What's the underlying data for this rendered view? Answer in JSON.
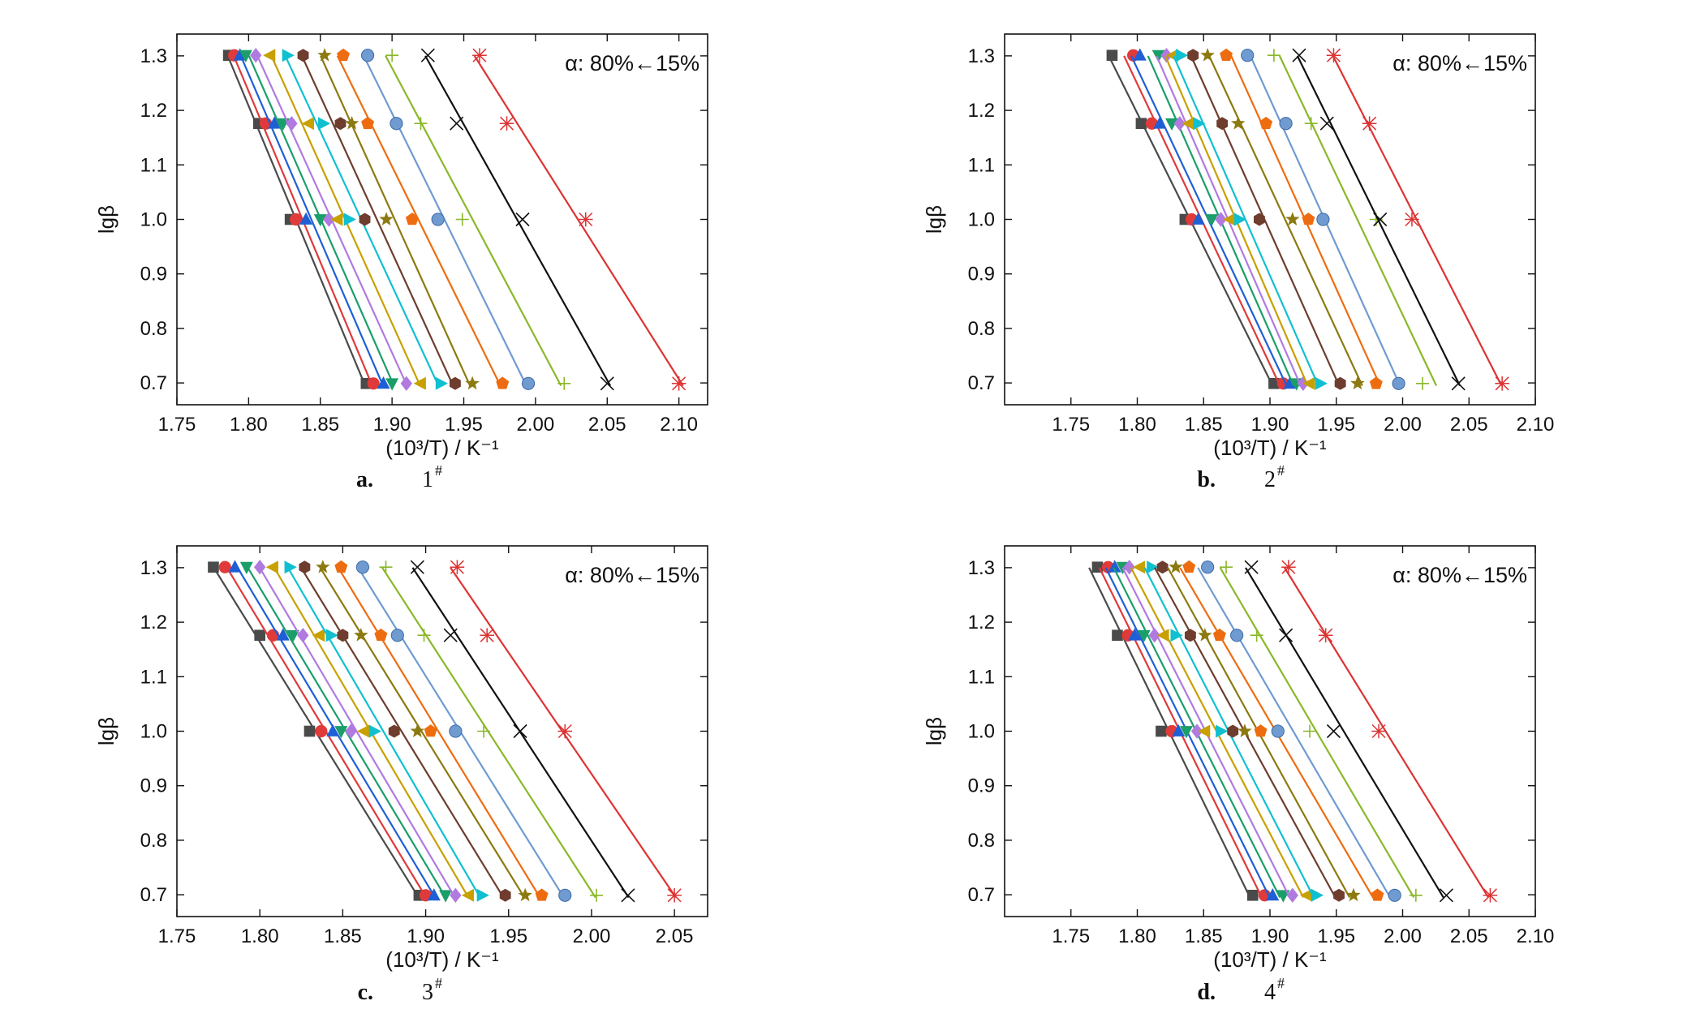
{
  "figure": {
    "panels": [
      {
        "label": "a.",
        "sample": "1",
        "sample_mark": "#"
      },
      {
        "label": "b.",
        "sample": "2",
        "sample_mark": "#"
      },
      {
        "label": "c.",
        "sample": "3",
        "sample_mark": "#"
      },
      {
        "label": "d.",
        "sample": "4",
        "sample_mark": "#"
      }
    ]
  },
  "chart_data": [
    {
      "type": "scatter",
      "panel": "a",
      "ylabel": "lgβ",
      "xlabel": "(10³/T) / K⁻¹",
      "annotation": "α: 80%←15%",
      "xlim": [
        1.75,
        2.12
      ],
      "ylim": [
        0.66,
        1.34
      ],
      "xticks": [
        "1.75",
        "1.80",
        "1.85",
        "1.90",
        "1.95",
        "2.00",
        "2.05",
        "2.10"
      ],
      "yticks": [
        "0.7",
        "0.8",
        "0.9",
        "1.0",
        "1.1",
        "1.2",
        "1.3"
      ],
      "y": [
        1.301,
        1.176,
        1.0,
        0.699
      ],
      "series": [
        {
          "marker": "square",
          "color": "#4a4a4a",
          "x": [
            1.786,
            1.807,
            1.829,
            1.882
          ]
        },
        {
          "marker": "circle",
          "color": "#e03a3a",
          "x": [
            1.79,
            1.812,
            1.833,
            1.887
          ]
        },
        {
          "marker": "triangle-up",
          "color": "#1f5fd6",
          "x": [
            1.794,
            1.818,
            1.84,
            1.894
          ]
        },
        {
          "marker": "triangle-down",
          "color": "#1a9e6a",
          "x": [
            1.798,
            1.824,
            1.85,
            1.9
          ]
        },
        {
          "marker": "diamond",
          "color": "#b07ae0",
          "x": [
            1.805,
            1.83,
            1.856,
            1.91
          ]
        },
        {
          "marker": "triangle-left",
          "color": "#c8a000",
          "x": [
            1.815,
            1.842,
            1.862,
            1.92
          ]
        },
        {
          "marker": "triangle-right",
          "color": "#10c0d0",
          "x": [
            1.827,
            1.852,
            1.87,
            1.934
          ]
        },
        {
          "marker": "hexagon",
          "color": "#6e3d2e",
          "x": [
            1.838,
            1.864,
            1.881,
            1.944
          ]
        },
        {
          "marker": "star",
          "color": "#8c7a10",
          "x": [
            1.853,
            1.872,
            1.896,
            1.956
          ]
        },
        {
          "marker": "pentagon",
          "color": "#ee6c10",
          "x": [
            1.866,
            1.883,
            1.914,
            1.977
          ]
        },
        {
          "marker": "sphere",
          "color": "#6f9bd1",
          "x": [
            1.883,
            1.903,
            1.932,
            1.995
          ]
        },
        {
          "marker": "plus",
          "color": "#8ab82a",
          "x": [
            1.9,
            1.92,
            1.949,
            2.02
          ]
        },
        {
          "marker": "x",
          "color": "#111111",
          "x": [
            1.925,
            1.945,
            1.991,
            2.05
          ]
        },
        {
          "marker": "asterisk",
          "color": "#dd3333",
          "x": [
            1.961,
            1.98,
            2.035,
            2.1
          ]
        }
      ]
    },
    {
      "type": "scatter",
      "panel": "b",
      "ylabel": "lgβ",
      "xlabel": "(10³/T) / K⁻¹",
      "annotation": "α: 80%←15%",
      "xlim": [
        1.7,
        2.1
      ],
      "ylim": [
        0.66,
        1.34
      ],
      "xticks": [
        "1.75",
        "1.80",
        "1.85",
        "1.90",
        "1.95",
        "2.00",
        "2.05",
        "2.10"
      ],
      "yticks": [
        "0.7",
        "0.8",
        "0.9",
        "1.0",
        "1.1",
        "1.2",
        "1.3"
      ],
      "y": [
        1.301,
        1.176,
        1.0,
        0.699
      ],
      "series": [
        {
          "marker": "square",
          "color": "#4a4a4a",
          "x": [
            1.781,
            1.803,
            1.836,
            1.903
          ]
        },
        {
          "marker": "circle",
          "color": "#e03a3a",
          "x": [
            1.797,
            1.811,
            1.841,
            1.91
          ]
        },
        {
          "marker": "triangle-up",
          "color": "#1f5fd6",
          "x": [
            1.802,
            1.817,
            1.846,
            1.915
          ]
        },
        {
          "marker": "triangle-down",
          "color": "#1a9e6a",
          "x": [
            1.816,
            1.826,
            1.856,
            1.92
          ]
        },
        {
          "marker": "diamond",
          "color": "#b07ae0",
          "x": [
            1.822,
            1.832,
            1.863,
            1.925
          ]
        },
        {
          "marker": "triangle-left",
          "color": "#c8a000",
          "x": [
            1.827,
            1.839,
            1.87,
            1.93
          ]
        },
        {
          "marker": "triangle-right",
          "color": "#10c0d0",
          "x": [
            1.833,
            1.846,
            1.877,
            1.938
          ]
        },
        {
          "marker": "hexagon",
          "color": "#6e3d2e",
          "x": [
            1.842,
            1.864,
            1.892,
            1.953
          ]
        },
        {
          "marker": "star",
          "color": "#8c7a10",
          "x": [
            1.853,
            1.876,
            1.917,
            1.966
          ]
        },
        {
          "marker": "pentagon",
          "color": "#ee6c10",
          "x": [
            1.867,
            1.897,
            1.929,
            1.98
          ]
        },
        {
          "marker": "sphere",
          "color": "#6f9bd1",
          "x": [
            1.883,
            1.912,
            1.94,
            1.997
          ]
        },
        {
          "marker": "plus",
          "color": "#8ab82a",
          "x": [
            1.903,
            1.931,
            1.98,
            2.015
          ]
        },
        {
          "marker": "x",
          "color": "#111111",
          "x": [
            1.922,
            1.943,
            1.983,
            2.042
          ]
        },
        {
          "marker": "asterisk",
          "color": "#dd3333",
          "x": [
            1.948,
            1.975,
            2.007,
            2.075
          ]
        }
      ]
    },
    {
      "type": "scatter",
      "panel": "c",
      "ylabel": "lgβ",
      "xlabel": "(10³/T) / K⁻¹",
      "annotation": "α: 80%←15%",
      "xlim": [
        1.75,
        2.07
      ],
      "ylim": [
        0.66,
        1.34
      ],
      "xticks": [
        "1.75",
        "1.80",
        "1.85",
        "1.90",
        "1.95",
        "2.00",
        "2.05"
      ],
      "yticks": [
        "0.7",
        "0.8",
        "0.9",
        "1.0",
        "1.1",
        "1.2",
        "1.3"
      ],
      "y": [
        1.301,
        1.176,
        1.0,
        0.699
      ],
      "series": [
        {
          "marker": "square",
          "color": "#4a4a4a",
          "x": [
            1.772,
            1.8,
            1.83,
            1.896
          ]
        },
        {
          "marker": "circle",
          "color": "#e03a3a",
          "x": [
            1.779,
            1.808,
            1.837,
            1.9
          ]
        },
        {
          "marker": "triangle-up",
          "color": "#1f5fd6",
          "x": [
            1.785,
            1.814,
            1.844,
            1.905
          ]
        },
        {
          "marker": "triangle-down",
          "color": "#1a9e6a",
          "x": [
            1.792,
            1.82,
            1.849,
            1.912
          ]
        },
        {
          "marker": "diamond",
          "color": "#b07ae0",
          "x": [
            1.8,
            1.826,
            1.855,
            1.918
          ]
        },
        {
          "marker": "triangle-left",
          "color": "#c8a000",
          "x": [
            1.808,
            1.836,
            1.863,
            1.926
          ]
        },
        {
          "marker": "triangle-right",
          "color": "#10c0d0",
          "x": [
            1.818,
            1.843,
            1.869,
            1.934
          ]
        },
        {
          "marker": "hexagon",
          "color": "#6e3d2e",
          "x": [
            1.827,
            1.85,
            1.881,
            1.948
          ]
        },
        {
          "marker": "star",
          "color": "#8c7a10",
          "x": [
            1.838,
            1.861,
            1.895,
            1.96
          ]
        },
        {
          "marker": "pentagon",
          "color": "#ee6c10",
          "x": [
            1.849,
            1.873,
            1.903,
            1.97
          ]
        },
        {
          "marker": "sphere",
          "color": "#6f9bd1",
          "x": [
            1.862,
            1.883,
            1.918,
            1.984
          ]
        },
        {
          "marker": "plus",
          "color": "#8ab82a",
          "x": [
            1.876,
            1.899,
            1.935,
            2.003
          ]
        },
        {
          "marker": "x",
          "color": "#111111",
          "x": [
            1.895,
            1.915,
            1.957,
            2.022
          ]
        },
        {
          "marker": "asterisk",
          "color": "#dd3333",
          "x": [
            1.919,
            1.937,
            1.984,
            2.05
          ]
        }
      ]
    },
    {
      "type": "scatter",
      "panel": "d",
      "ylabel": "lgβ",
      "xlabel": "(10³/T) / K⁻¹",
      "annotation": "α: 80%←15%",
      "xlim": [
        1.7,
        2.1
      ],
      "ylim": [
        0.66,
        1.34
      ],
      "xticks": [
        "1.75",
        "1.80",
        "1.85",
        "1.90",
        "1.95",
        "2.00",
        "2.05",
        "2.10"
      ],
      "yticks": [
        "0.7",
        "0.8",
        "0.9",
        "1.0",
        "1.1",
        "1.2",
        "1.3"
      ],
      "y": [
        1.301,
        1.176,
        1.0,
        0.699
      ],
      "series": [
        {
          "marker": "square",
          "color": "#4a4a4a",
          "x": [
            1.77,
            1.785,
            1.818,
            1.887
          ]
        },
        {
          "marker": "circle",
          "color": "#e03a3a",
          "x": [
            1.778,
            1.793,
            1.826,
            1.896
          ]
        },
        {
          "marker": "triangle-up",
          "color": "#1f5fd6",
          "x": [
            1.783,
            1.798,
            1.831,
            1.902
          ]
        },
        {
          "marker": "triangle-down",
          "color": "#1a9e6a",
          "x": [
            1.789,
            1.805,
            1.837,
            1.91
          ]
        },
        {
          "marker": "diamond",
          "color": "#b07ae0",
          "x": [
            1.794,
            1.813,
            1.845,
            1.917
          ]
        },
        {
          "marker": "triangle-left",
          "color": "#c8a000",
          "x": [
            1.802,
            1.82,
            1.851,
            1.928
          ]
        },
        {
          "marker": "triangle-right",
          "color": "#10c0d0",
          "x": [
            1.811,
            1.829,
            1.863,
            1.935
          ]
        },
        {
          "marker": "hexagon",
          "color": "#6e3d2e",
          "x": [
            1.819,
            1.84,
            1.872,
            1.952
          ]
        },
        {
          "marker": "star",
          "color": "#8c7a10",
          "x": [
            1.829,
            1.851,
            1.881,
            1.963
          ]
        },
        {
          "marker": "pentagon",
          "color": "#ee6c10",
          "x": [
            1.839,
            1.862,
            1.893,
            1.981
          ]
        },
        {
          "marker": "sphere",
          "color": "#6f9bd1",
          "x": [
            1.853,
            1.875,
            1.906,
            1.994
          ]
        },
        {
          "marker": "plus",
          "color": "#8ab82a",
          "x": [
            1.867,
            1.89,
            1.93,
            2.01
          ]
        },
        {
          "marker": "x",
          "color": "#111111",
          "x": [
            1.886,
            1.912,
            1.948,
            2.033
          ]
        },
        {
          "marker": "asterisk",
          "color": "#dd3333",
          "x": [
            1.914,
            1.942,
            1.982,
            2.066
          ]
        }
      ]
    }
  ]
}
